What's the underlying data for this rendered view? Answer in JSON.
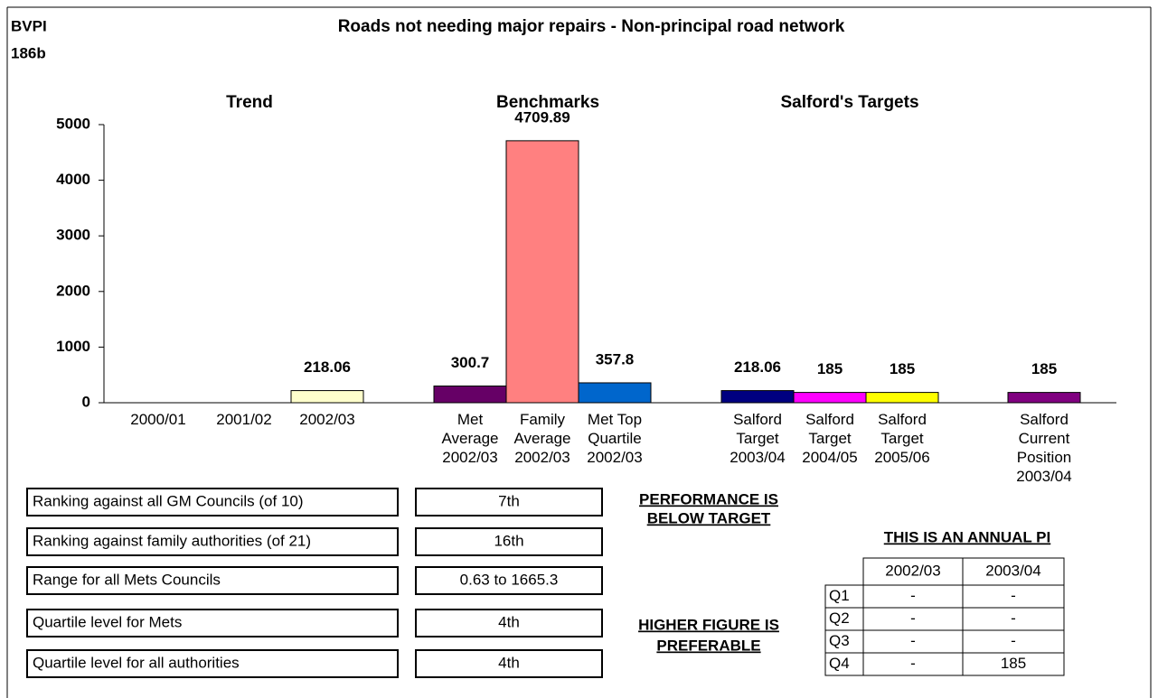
{
  "chart_data": {
    "type": "bar",
    "code": [
      "BVPI",
      "186b"
    ],
    "title": "Roads not needing major repairs - Non-principal road network",
    "section_titles": [
      "Trend",
      "Benchmarks",
      "Salford's Targets"
    ],
    "categories": [
      "2000/01",
      "2001/02",
      "2002/03",
      "Met\nAverage\n2002/03",
      "Family\nAverage\n2002/03",
      "Met Top\nQuartile\n2002/03",
      "Salford\nTarget\n2003/04",
      "Salford\nTarget\n2004/05",
      "Salford\nTarget\n2005/06",
      "Salford\nCurrent\nPosition\n2003/04"
    ],
    "values": [
      null,
      null,
      218.06,
      300.7,
      4709.89,
      357.8,
      218.06,
      185,
      185,
      185
    ],
    "colors": [
      "#ffffcc",
      "#ffffcc",
      "#ffffcc",
      "#660066",
      "#ff8080",
      "#0066cc",
      "#000080",
      "#ff00ff",
      "#ffff00",
      "#800080"
    ],
    "ylim": [
      0,
      5000
    ],
    "yticks": [
      0,
      1000,
      2000,
      3000,
      4000,
      5000
    ]
  },
  "rankings": [
    {
      "label": "Ranking against all GM Councils (of 10)",
      "value": "7th"
    },
    {
      "label": "Ranking against family authorities (of 21)",
      "value": "16th"
    },
    {
      "label": "Range for all Mets Councils",
      "value": "0.63 to 1665.3"
    },
    {
      "label": "Quartile level for Mets",
      "value": "4th"
    },
    {
      "label": "Quartile level for all authorities",
      "value": "4th"
    }
  ],
  "notes": {
    "performance": [
      "PERFORMANCE IS",
      "BELOW TARGET"
    ],
    "preference": [
      "HIGHER FIGURE IS",
      "PREFERABLE"
    ]
  },
  "quarterly": {
    "title": "THIS IS AN ANNUAL PI",
    "columns": [
      "2002/03",
      "2003/04"
    ],
    "rows": [
      {
        "label": "Q1",
        "values": [
          "-",
          "-"
        ]
      },
      {
        "label": "Q2",
        "values": [
          "-",
          "-"
        ]
      },
      {
        "label": "Q3",
        "values": [
          "-",
          "-"
        ]
      },
      {
        "label": "Q4",
        "values": [
          "-",
          "185"
        ]
      }
    ]
  }
}
